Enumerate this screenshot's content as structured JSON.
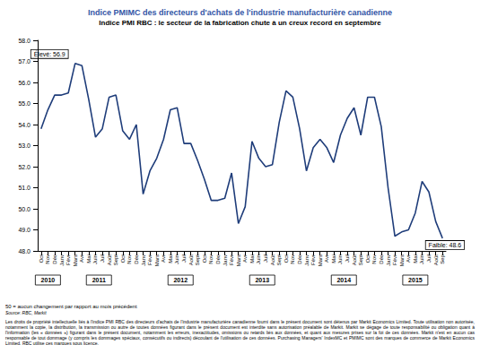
{
  "chart_data": {
    "type": "line",
    "title": "Indice PMIMC des directeurs d'achats de l'industrie manufacturière canadienne",
    "subtitle": "Indice PMI RBC : le secteur de la fabrication chute à un creux record en septembre",
    "categories": [
      "Oct",
      "Nov",
      "Déc",
      "Janv",
      "Févr",
      "Mars",
      "Avr",
      "Mai",
      "Juin",
      "Juil",
      "Août",
      "Sept",
      "Oct",
      "Nov",
      "Déc",
      "Janv",
      "Févr",
      "Mars",
      "Avr",
      "Mai",
      "Juin",
      "Juil",
      "Août",
      "Sept",
      "Oct",
      "Nov",
      "Déc",
      "Janv",
      "Févr",
      "Mars",
      "Avr",
      "Mai",
      "Juin",
      "Juil",
      "Août",
      "Sept",
      "Oct",
      "Nov",
      "Déc",
      "Janv",
      "Févr",
      "Mars",
      "Avr",
      "Mai",
      "Juin",
      "Juil",
      "Août",
      "Sept",
      "Oct",
      "Nov",
      "Déc",
      "Janv",
      "Févr",
      "Mars",
      "Avr",
      "Mai",
      "Juin",
      "Juil",
      "Août",
      "Sep"
    ],
    "year_groups": [
      {
        "label": "2010",
        "count": 3
      },
      {
        "label": "2011",
        "count": 12
      },
      {
        "label": "2012",
        "count": 12
      },
      {
        "label": "2013",
        "count": 12
      },
      {
        "label": "2014",
        "count": 12
      },
      {
        "label": "2015",
        "count": 9
      }
    ],
    "values": [
      53.8,
      54.7,
      55.4,
      55.4,
      55.5,
      56.9,
      56.8,
      55.2,
      53.4,
      53.8,
      55.3,
      55.4,
      53.7,
      53.3,
      54.0,
      50.7,
      51.8,
      52.4,
      53.3,
      54.7,
      54.8,
      53.1,
      53.1,
      52.3,
      51.4,
      50.4,
      50.4,
      50.5,
      51.7,
      49.3,
      50.1,
      53.2,
      52.4,
      52.0,
      52.1,
      54.1,
      55.6,
      55.3,
      53.8,
      51.8,
      52.9,
      53.3,
      52.9,
      52.2,
      53.5,
      54.3,
      54.8,
      53.5,
      55.3,
      55.3,
      53.9,
      51.0,
      48.7,
      48.9,
      49.0,
      49.8,
      51.3,
      50.8,
      49.4,
      48.6
    ],
    "color": "#1f3d7a",
    "ylim": [
      48,
      58
    ],
    "yticks": [
      {
        "value": 48,
        "label": "48.0"
      },
      {
        "value": 49,
        "label": "49.0"
      },
      {
        "value": 50,
        "label": "50.0"
      },
      {
        "value": 51,
        "label": "51.0"
      },
      {
        "value": 52,
        "label": "52.0"
      },
      {
        "value": 53,
        "label": "53.0"
      },
      {
        "value": 54,
        "label": "54.0"
      },
      {
        "value": 55,
        "label": "55.0"
      },
      {
        "value": 56,
        "label": "56.0"
      },
      {
        "value": 57,
        "label": "57.0"
      },
      {
        "value": 58,
        "label": "58.0"
      }
    ],
    "grid": false,
    "annotations": [
      "Élevé: 56.9",
      "Faible: 48.6"
    ],
    "footnote": "50 = aucun changement par rapport au mois précédent",
    "source": "Source: RBC, Markit",
    "legal": "Les droits de propriété intellectuelle liés à l'indice PMI RBC des directeurs d'achats de l'industrie manufacturière canadienne fourni dans le présent document sont détenus par Markit Economics Limited. Toute utilisation non autorisée, notamment la copie, la distribution, la transmission ou autre de toutes données figurant dans le présent document est interdite sans autorisation préalable de Markit. Markit se dégage de toute responsabilité ou obligation quant à l'information (les « données ») figurant dans le présent document, notamment les erreurs, inexactitudes, omissions ou retards liés aux données, et quant aux mesures prises sur la foi de ces données. Markit n'est en aucun cas responsable de tout dommage (y compris les dommages spéciaux, consécutifs ou indirects) découlant de l'utilisation de ces données. Purchasing Managers' IndexMC et PMIMC sont des marques de commerce de Markit Economics Limited. RBC utilise ces marques sous licence."
  }
}
